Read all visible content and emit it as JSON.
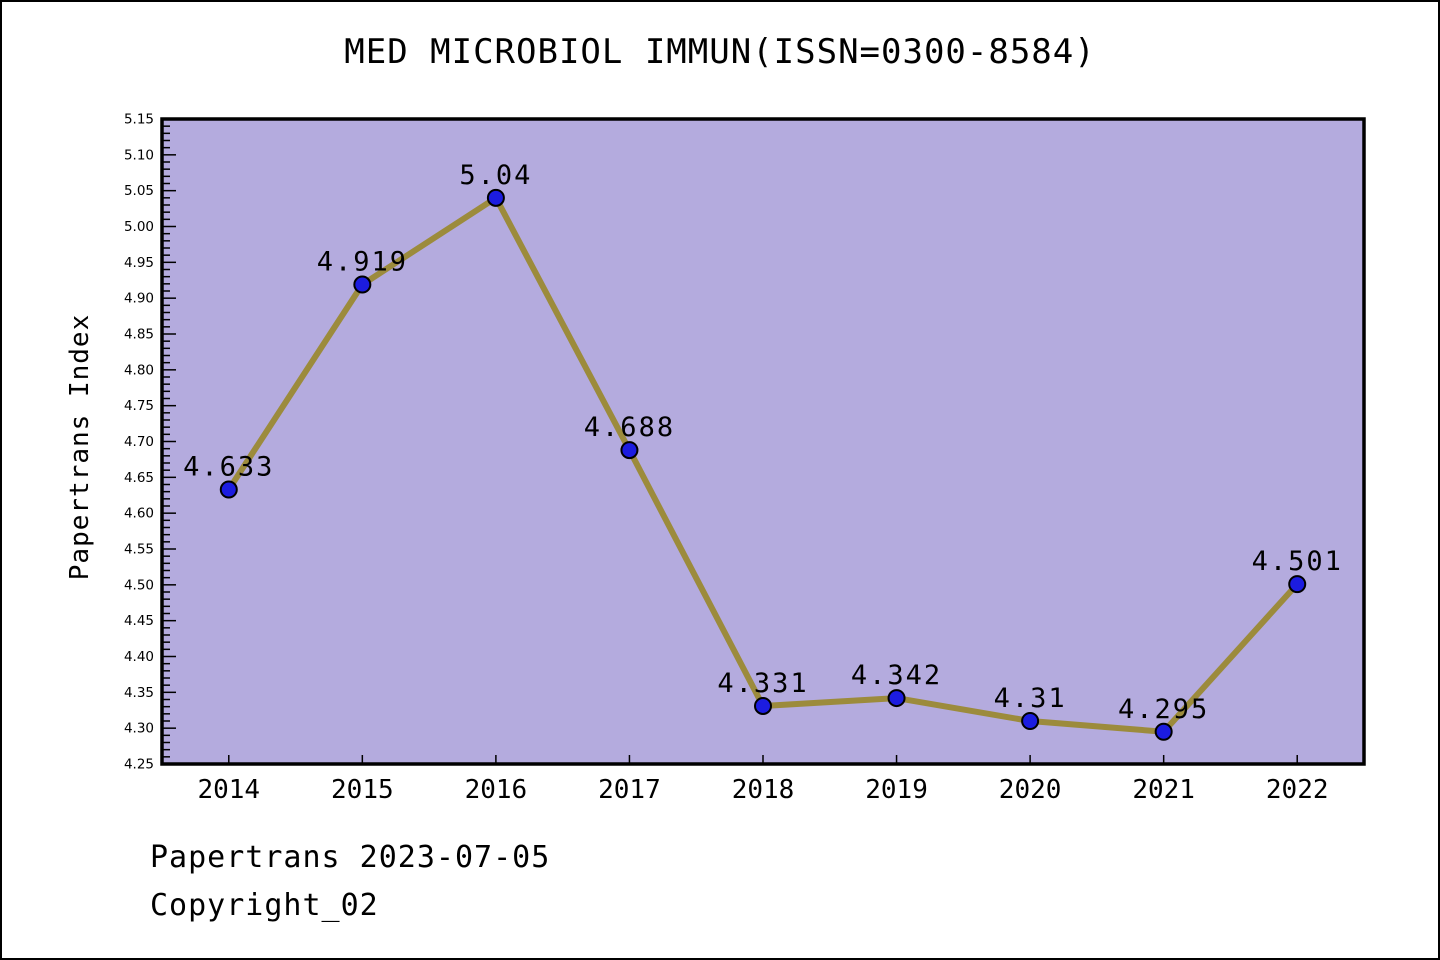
{
  "title": "MED MICROBIOL IMMUN(ISSN=0300-8584)",
  "footer": {
    "date_line": "Papertrans 2023-07-05",
    "copyright_line": "Copyright_02"
  },
  "chart_data": {
    "type": "line",
    "title": "MED MICROBIOL IMMUN(ISSN=0300-8584)",
    "xlabel": "",
    "ylabel": "Papertrans Index",
    "categories": [
      "2014",
      "2015",
      "2016",
      "2017",
      "2018",
      "2019",
      "2020",
      "2021",
      "2022"
    ],
    "values": [
      4.633,
      4.919,
      5.04,
      4.688,
      4.331,
      4.342,
      4.31,
      4.295,
      4.501
    ],
    "point_labels": [
      "4.633",
      "4.919",
      "5.04",
      "4.688",
      "4.331",
      "4.342",
      "4.31",
      "4.295",
      "4.501"
    ],
    "ylim": [
      4.25,
      5.15
    ],
    "ytick_step": 0.05,
    "yminor_step": 0.01,
    "grid": false,
    "legend_position": "none",
    "colors": {
      "plot_background": "#b4abde",
      "line": "#9c8b3c",
      "marker_fill": "#1c1ce0",
      "marker_edge": "#000000",
      "axis": "#000000",
      "text": "#000000"
    }
  }
}
